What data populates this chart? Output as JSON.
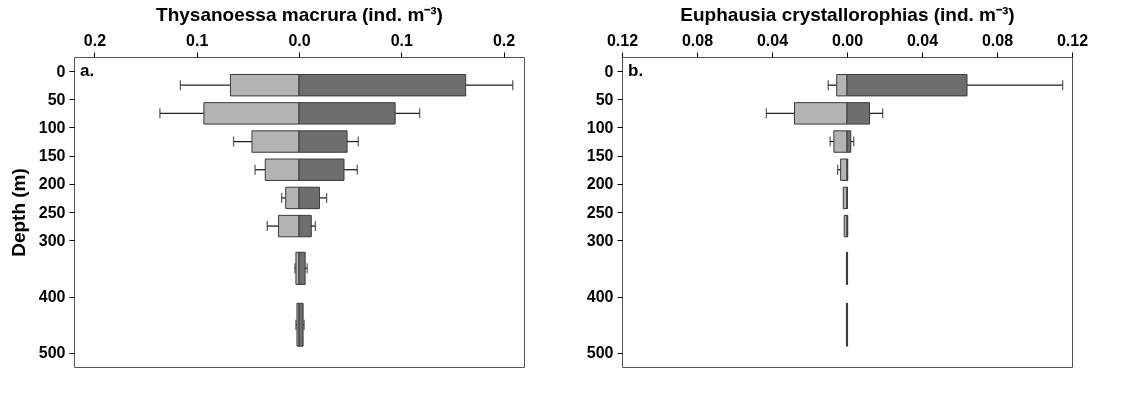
{
  "chart_data": [
    {
      "type": "bar",
      "orientation": "horizontal",
      "stacked": true,
      "xlabel": "Thysanoessa macrura (ind. m⁻³)",
      "ylabel": "Depth (m)",
      "annotations": [
        "a."
      ],
      "x": [
        25,
        75,
        125,
        175,
        225,
        275,
        350,
        450
      ],
      "series": [
        {
          "color": "#b4b4b4",
          "values": [
            -0.067,
            -0.093,
            -0.046,
            -0.033,
            -0.013,
            -0.02,
            -0.003,
            -0.002
          ],
          "errors": [
            0.049,
            0.043,
            0.018,
            0.01,
            0.004,
            0.011,
            0.001,
            0.001
          ]
        },
        {
          "color": "#6e6e6e",
          "values": [
            0.163,
            0.094,
            0.047,
            0.044,
            0.02,
            0.012,
            0.006,
            0.004
          ],
          "errors": [
            0.046,
            0.024,
            0.011,
            0.013,
            0.007,
            0.004,
            0.002,
            0.001
          ]
        }
      ],
      "xlim": [
        -0.22,
        0.22
      ],
      "xticks": [
        {
          "value": -0.2,
          "label": "0.2"
        },
        {
          "value": -0.1,
          "label": "0.1"
        },
        {
          "value": 0,
          "label": "0.0"
        },
        0.1,
        0.2
      ],
      "ylim": [
        525,
        -25
      ],
      "yticks": [
        0,
        50,
        100,
        150,
        200,
        250,
        300,
        400,
        500
      ]
    },
    {
      "type": "bar",
      "orientation": "horizontal",
      "stacked": true,
      "xlabel": "Euphausia crystallorophias (ind. m⁻³)",
      "annotations": [
        "b."
      ],
      "x": [
        25,
        75,
        125,
        175,
        225,
        275,
        350,
        450
      ],
      "series": [
        {
          "color": "#b4b4b4",
          "values": [
            -0.0055,
            -0.028,
            -0.007,
            -0.0034,
            -0.002,
            -0.0015,
            -0.0003,
            -0.0003
          ],
          "errors": [
            0.0045,
            0.015,
            0.002,
            0.0016,
            null,
            null,
            null,
            null
          ]
        },
        {
          "color": "#6e6e6e",
          "values": [
            0.064,
            0.012,
            0.002,
            0.0004,
            0.0002,
            0.0004,
            0.0003,
            0.0003
          ],
          "errors": [
            0.051,
            0.007,
            0.0016,
            null,
            null,
            null,
            null,
            null
          ]
        }
      ],
      "xlim": [
        -0.12,
        0.12
      ],
      "xticks": [
        {
          "value": -0.12,
          "label": "0.12"
        },
        {
          "value": -0.08,
          "label": "0.08"
        },
        {
          "value": -0.04,
          "label": "0.04"
        },
        {
          "value": 0,
          "label": "0.00"
        },
        0.04,
        0.08,
        0.12
      ],
      "ylim": [
        525,
        -25
      ],
      "yticks": [
        0,
        50,
        100,
        150,
        200,
        250,
        300,
        400,
        500
      ]
    }
  ]
}
